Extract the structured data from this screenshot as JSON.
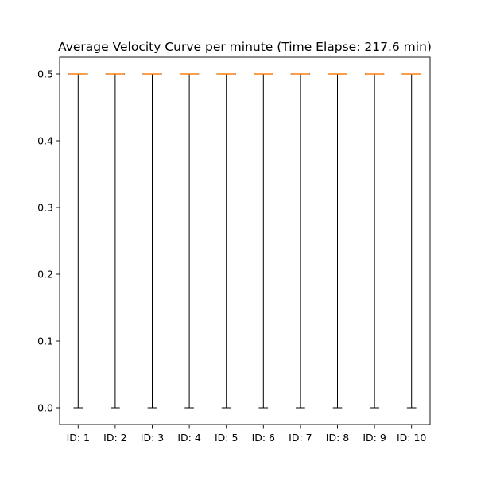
{
  "chart_data": {
    "type": "box",
    "title": "Average Velocity Curve per minute (Time Elapse: 217.6 min)",
    "xlabel": "",
    "ylabel": "",
    "categories": [
      "ID: 1",
      "ID: 2",
      "ID: 3",
      "ID: 4",
      "ID: 5",
      "ID: 6",
      "ID: 7",
      "ID: 8",
      "ID: 9",
      "ID: 10"
    ],
    "boxes": [
      {
        "whisker_low": 0.0,
        "q1": 0.5,
        "median": 0.5,
        "q3": 0.5,
        "whisker_high": 0.5
      },
      {
        "whisker_low": 0.0,
        "q1": 0.5,
        "median": 0.5,
        "q3": 0.5,
        "whisker_high": 0.5
      },
      {
        "whisker_low": 0.0,
        "q1": 0.5,
        "median": 0.5,
        "q3": 0.5,
        "whisker_high": 0.5
      },
      {
        "whisker_low": 0.0,
        "q1": 0.5,
        "median": 0.5,
        "q3": 0.5,
        "whisker_high": 0.5
      },
      {
        "whisker_low": 0.0,
        "q1": 0.5,
        "median": 0.5,
        "q3": 0.5,
        "whisker_high": 0.5
      },
      {
        "whisker_low": 0.0,
        "q1": 0.5,
        "median": 0.5,
        "q3": 0.5,
        "whisker_high": 0.5
      },
      {
        "whisker_low": 0.0,
        "q1": 0.5,
        "median": 0.5,
        "q3": 0.5,
        "whisker_high": 0.5
      },
      {
        "whisker_low": 0.0,
        "q1": 0.5,
        "median": 0.5,
        "q3": 0.5,
        "whisker_high": 0.5
      },
      {
        "whisker_low": 0.0,
        "q1": 0.5,
        "median": 0.5,
        "q3": 0.5,
        "whisker_high": 0.5
      },
      {
        "whisker_low": 0.0,
        "q1": 0.5,
        "median": 0.5,
        "q3": 0.5,
        "whisker_high": 0.5
      }
    ],
    "yticks": [
      0.0,
      0.1,
      0.2,
      0.3,
      0.4,
      0.5
    ],
    "ytick_labels": [
      "0.0",
      "0.1",
      "0.2",
      "0.3",
      "0.4",
      "0.5"
    ],
    "ylim": [
      -0.025,
      0.525
    ],
    "grid": false,
    "legend": "none",
    "colors": {
      "whisker": "#000000",
      "median": "#ff7f0e",
      "axes": "#000000",
      "background": "#ffffff"
    }
  }
}
